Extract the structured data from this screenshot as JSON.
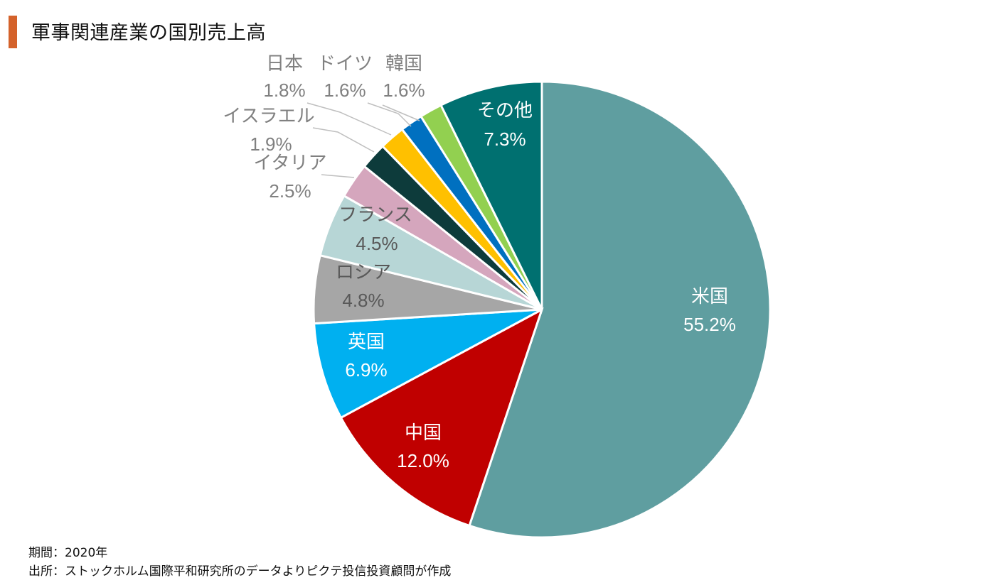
{
  "title": "軍事関連産業の国別売上高",
  "footnotes": {
    "period": "期間：2020年",
    "source": "出所：ストックホルム国際平和研究所のデータよりピクテ投信投資顧問が作成"
  },
  "chart_data": {
    "type": "pie",
    "start": "12 o'clock",
    "direction": "clockwise",
    "slices": [
      {
        "label": "米国",
        "value": 55.2,
        "display": "55.2%",
        "color": "#5f9ea0"
      },
      {
        "label": "中国",
        "value": 12.0,
        "display": "12.0%",
        "color": "#c00000"
      },
      {
        "label": "英国",
        "value": 6.9,
        "display": "6.9%",
        "color": "#00b0f0"
      },
      {
        "label": "ロシア",
        "value": 4.8,
        "display": "4.8%",
        "color": "#a6a6a6"
      },
      {
        "label": "フランス",
        "value": 4.5,
        "display": "4.5%",
        "color": "#b7d6d6"
      },
      {
        "label": "イタリア",
        "value": 2.5,
        "display": "2.5%",
        "color": "#d5a6bd"
      },
      {
        "label": "イスラエル",
        "value": 1.9,
        "display": "1.9%",
        "color": "#0d3b3b"
      },
      {
        "label": "日本",
        "value": 1.8,
        "display": "1.8%",
        "color": "#ffc000"
      },
      {
        "label": "ドイツ",
        "value": 1.6,
        "display": "1.6%",
        "color": "#0070c0"
      },
      {
        "label": "韓国",
        "value": 1.6,
        "display": "1.6%",
        "color": "#92d050"
      },
      {
        "label": "その他",
        "value": 7.3,
        "display": "7.3%",
        "color": "#007070"
      }
    ]
  }
}
